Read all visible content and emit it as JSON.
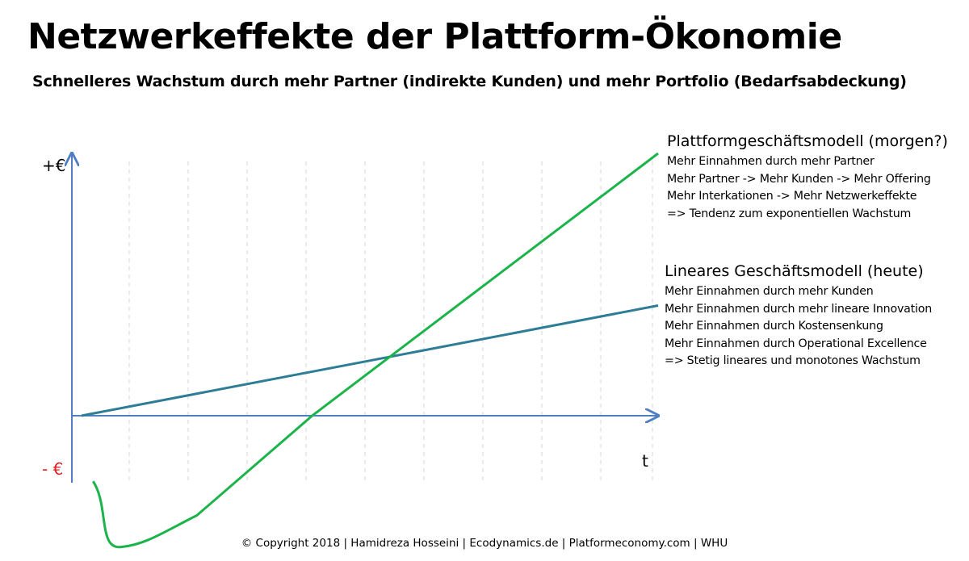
{
  "title": "Netzwerkeffekte der Plattform-Ökonomie",
  "subtitle": "Schnelleres Wachstum durch mehr Partner (indirekte Kunden) und mehr Portfolio (Bedarfsabdeckung)",
  "chart_data": {
    "type": "line",
    "y_top_label": "+€",
    "y_bottom_label": "- €",
    "x_label": "t",
    "grid": "vertical dashed",
    "colors": {
      "platform": "#1db34b",
      "linear": "#2e7d96",
      "axis": "#4f7fc0",
      "negative_label": "#e02020"
    },
    "series": [
      {
        "name": "Plattformgeschäftsmodell (morgen?)",
        "points": [
          [
            0.02,
            -0.25
          ],
          [
            0.07,
            -0.5
          ],
          [
            0.2,
            -0.38
          ],
          [
            0.4,
            0.0
          ],
          [
            1.0,
            1.0
          ]
        ]
      },
      {
        "name": "Lineares Geschäftsmodell (heute)",
        "points": [
          [
            0.0,
            0.0
          ],
          [
            1.0,
            0.42
          ]
        ]
      }
    ]
  },
  "annotations": {
    "platform": {
      "heading": "Plattformgeschäftsmodell (morgen?)",
      "lines": [
        "Mehr Einnahmen durch mehr Partner",
        "Mehr Partner -> Mehr Kunden -> Mehr Offering",
        "Mehr Interkationen -> Mehr Netzwerkeffekte",
        "=> Tendenz zum exponentiellen  Wachstum"
      ]
    },
    "linear": {
      "heading": "Lineares Geschäftsmodell (heute)",
      "lines": [
        "Mehr Einnahmen durch mehr Kunden",
        "Mehr Einnahmen durch mehr lineare Innovation",
        "Mehr Einnahmen durch Kostensenkung",
        "Mehr Einnahmen durch Operational Excellence",
        "=> Stetig lineares und monotones Wachstum"
      ]
    }
  },
  "footer": "© Copyright 2018 | Hamidreza Hosseini |  Ecodynamics.de  |  Platformeconomy.com  | WHU"
}
